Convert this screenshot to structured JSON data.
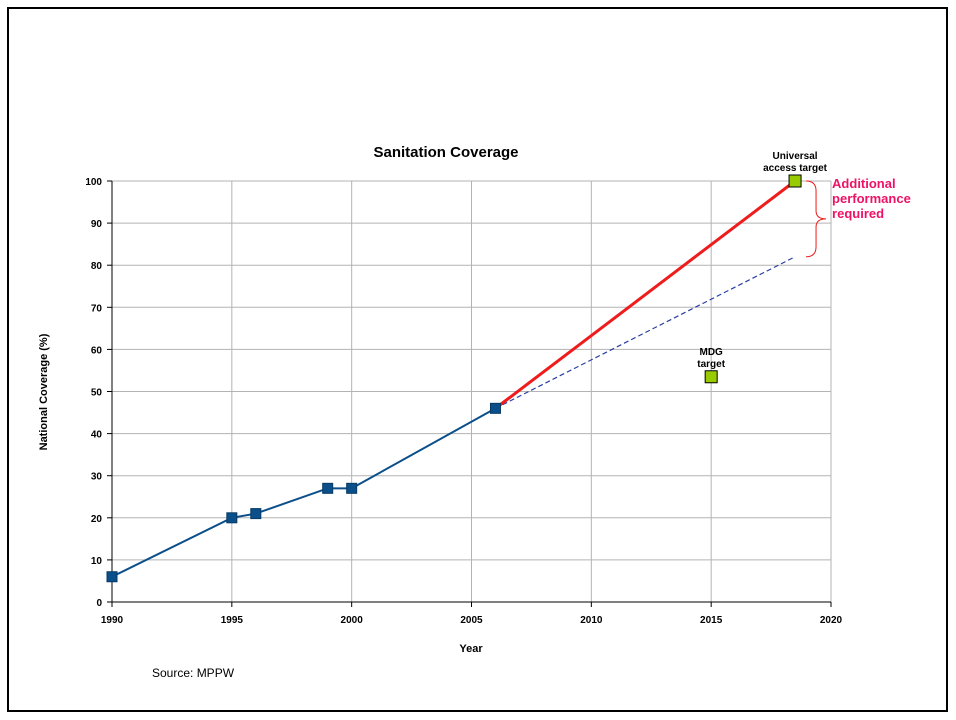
{
  "chart_data": {
    "type": "line",
    "title": "Sanitation Coverage",
    "xlabel": "Year",
    "ylabel": "National Coverage (%)",
    "xlim": [
      1990,
      2020
    ],
    "ylim": [
      0,
      100
    ],
    "x_ticks": [
      "1990",
      "1995",
      "2000",
      "2005",
      "2010",
      "2015",
      "2020"
    ],
    "x_tick_values": [
      1990,
      1995,
      2000,
      2005,
      2010,
      2015,
      2020
    ],
    "y_ticks": [
      "0",
      "10",
      "20",
      "30",
      "40",
      "50",
      "60",
      "70",
      "80",
      "90",
      "100"
    ],
    "y_tick_values": [
      0,
      10,
      20,
      30,
      40,
      50,
      60,
      70,
      80,
      90,
      100
    ],
    "grid": true,
    "series": [
      {
        "style": "line+square-markers",
        "color": "#0b4f8a",
        "x": [
          1990,
          1995,
          1996,
          1999,
          2000,
          2006
        ],
        "y": [
          6,
          20,
          21,
          27,
          27,
          46
        ]
      }
    ],
    "trend_line": {
      "style": "dashed",
      "color": "#2a3f9e",
      "x": [
        2006,
        2018.5
      ],
      "y": [
        46,
        82
      ]
    },
    "required_line": {
      "style": "solid-thick",
      "color": "#ee1c1c",
      "x": [
        2006,
        2018.5
      ],
      "y": [
        46,
        100
      ]
    },
    "targets": [
      {
        "label_lines": [
          "Universal",
          "access target"
        ],
        "x": 2018.5,
        "y": 100,
        "color": "#99cc00"
      },
      {
        "label_lines": [
          "MDG",
          "target"
        ],
        "x": 2015,
        "y": 53.5,
        "color": "#99cc00"
      }
    ],
    "bracket": {
      "from_y": 82,
      "to_y": 100,
      "color": "#ee1c1c",
      "label_lines": [
        "Additional",
        "performance",
        "required"
      ],
      "label_color": "#ee1166"
    },
    "source": "Source: MPPW"
  }
}
